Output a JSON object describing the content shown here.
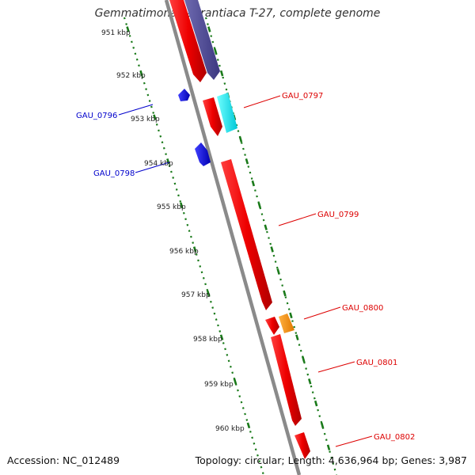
{
  "title": "Gemmatimonas aurantiaca T-27, complete genome",
  "accession": "Accession: NC_012489",
  "summary": "Topology: circular; Length: 4,636,964 bp; Genes: 3,987",
  "colors": {
    "backbone": "#8a8a8a",
    "ruler": "#1a7a1a",
    "forward_label": "#dd0000",
    "reverse_label": "#0000cc"
  },
  "kbp_ticks": [
    {
      "label": "951 kbp"
    },
    {
      "label": "952 kbp"
    },
    {
      "label": "953 kbp"
    },
    {
      "label": "954 kbp"
    },
    {
      "label": "955 kbp"
    },
    {
      "label": "956 kbp"
    },
    {
      "label": "957 kbp"
    },
    {
      "label": "958 kbp"
    },
    {
      "label": "959 kbp"
    },
    {
      "label": "960 kbp"
    }
  ],
  "genes": [
    {
      "name": "GAU_0796",
      "strand": "reverse",
      "color": "#0000ee"
    },
    {
      "name": "GAU_0797",
      "strand": "forward",
      "color": "#ee0000"
    },
    {
      "name": "GAU_0798",
      "strand": "reverse",
      "color": "#0000ee"
    },
    {
      "name": "GAU_0799",
      "strand": "forward",
      "color": "#ee0000"
    },
    {
      "name": "GAU_0800",
      "strand": "forward",
      "color": "#ee0000"
    },
    {
      "name": "GAU_0801",
      "strand": "forward",
      "color": "#ee0000"
    },
    {
      "name": "GAU_0802",
      "strand": "forward",
      "color": "#ee0000"
    }
  ]
}
